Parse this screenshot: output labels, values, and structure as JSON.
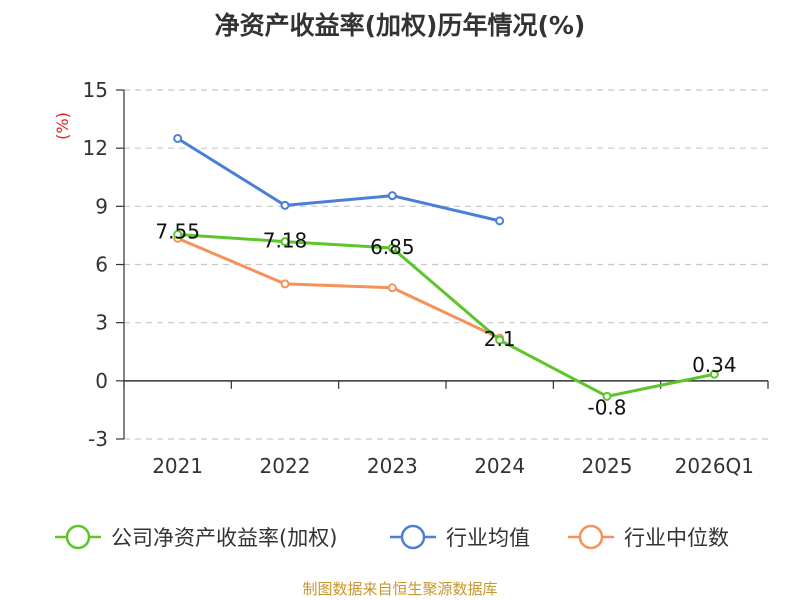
{
  "chart_data": {
    "type": "line",
    "title": "净资产收益率(加权)历年情况(%)",
    "ylabel": "(%)",
    "xlabel": "",
    "categories": [
      "2021",
      "2022",
      "2023",
      "2024",
      "2025",
      "2026Q1"
    ],
    "ylim": [
      -3,
      15
    ],
    "yticks": [
      "15",
      "12",
      "9",
      "6",
      "3",
      "0",
      "-3"
    ],
    "grid": true,
    "legend_position": "bottom",
    "series": [
      {
        "name": "公司净资产收益率(加权)",
        "color": "#5cc52a",
        "values": [
          7.55,
          7.18,
          6.85,
          2.1,
          -0.8,
          0.34
        ],
        "labels": [
          "7.55",
          "7.18",
          "6.85",
          "2.1",
          "-0.8",
          "0.34"
        ]
      },
      {
        "name": "行业均值",
        "color": "#4a7fd8",
        "values": [
          12.5,
          9.05,
          9.55,
          8.25,
          null,
          null
        ]
      },
      {
        "name": "行业中位数",
        "color": "#f5925a",
        "values": [
          7.35,
          5.0,
          4.8,
          2.2,
          null,
          null
        ]
      }
    ],
    "source": "制图数据来自恒生聚源数据库"
  }
}
